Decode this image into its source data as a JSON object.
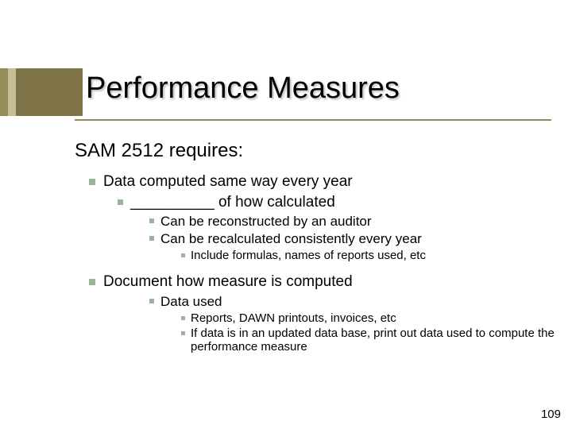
{
  "title": "Performance Measures",
  "subtitle": "SAM 2512 requires:",
  "bullets": {
    "b1": "Data computed same way every year",
    "b1_1": "__________ of how calculated",
    "b1_1_1": "Can be reconstructed by an auditor",
    "b1_1_2": "Can be recalculated consistently every year",
    "b1_1_2_1": "Include formulas, names of reports used, etc",
    "b2": "Document how measure is computed",
    "b2_1": "Data used",
    "b2_1_1": "Reports, DAWN printouts, invoices, etc",
    "b2_1_2": "If data is in an updated data base, print out data used to compute the performance measure"
  },
  "pageNumber": "109",
  "colors": {
    "bullet": "#9bb59b",
    "barDark": "#7d7346",
    "barMid": "#968c5a",
    "barLight": "#c6be96"
  }
}
